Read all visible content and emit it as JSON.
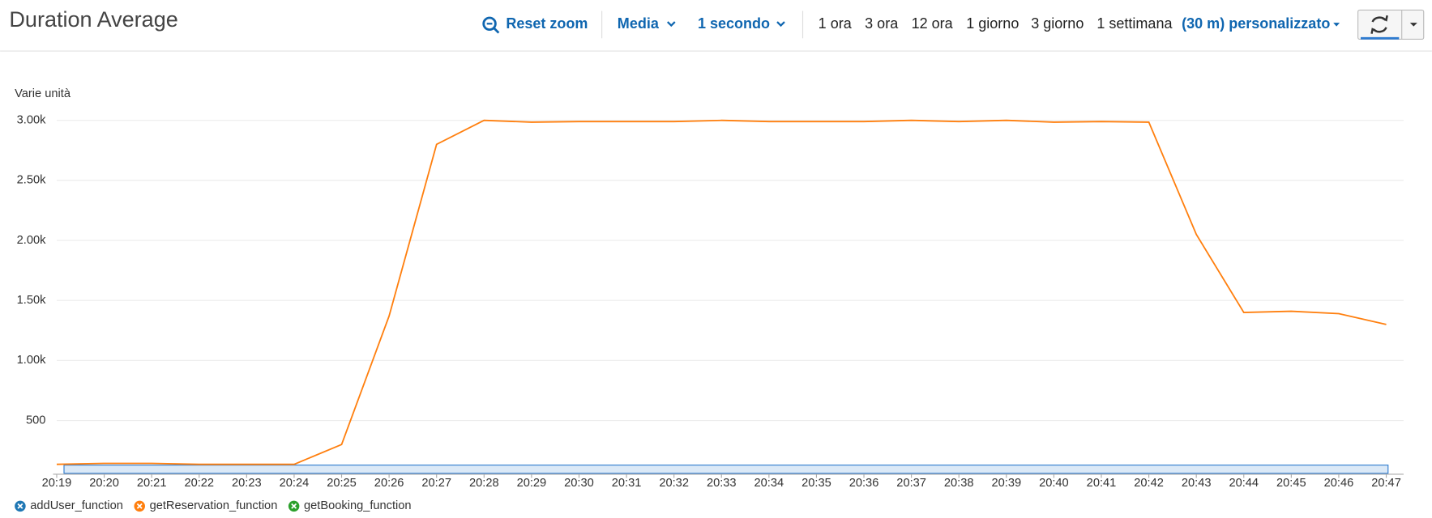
{
  "toolbar": {
    "reset_zoom": "Reset zoom",
    "statistic": "Media",
    "period": "1 secondo",
    "ranges": [
      "1 ora",
      "3 ora",
      "12 ora",
      "1 giorno",
      "3 giorno",
      "1 settimana"
    ],
    "custom_range": "(30 m) personalizzato"
  },
  "chart_data": {
    "type": "line",
    "title": "Duration Average",
    "y_label": "Varie unità",
    "categories": [
      "20:19",
      "20:20",
      "20:21",
      "20:22",
      "20:23",
      "20:24",
      "20:25",
      "20:26",
      "20:27",
      "20:28",
      "20:29",
      "20:30",
      "20:31",
      "20:32",
      "20:33",
      "20:34",
      "20:35",
      "20:36",
      "20:37",
      "20:38",
      "20:39",
      "20:40",
      "20:41",
      "20:42",
      "20:43",
      "20:44",
      "20:45",
      "20:46",
      "20:47"
    ],
    "series": [
      {
        "name": "addUser_function",
        "color": "#1f77b4",
        "values": [
          null,
          null,
          null,
          null,
          null,
          null,
          null,
          null,
          null,
          null,
          null,
          null,
          null,
          null,
          null,
          null,
          null,
          null,
          null,
          null,
          null,
          null,
          null,
          null,
          null,
          null,
          null,
          null,
          null
        ]
      },
      {
        "name": "getReservation_function",
        "color": "#ff7f0e",
        "values": [
          135,
          143,
          143,
          135,
          135,
          135,
          300,
          1370,
          2800,
          3000,
          2985,
          2990,
          2990,
          2990,
          3000,
          2990,
          2990,
          2990,
          3000,
          2990,
          3000,
          2985,
          2990,
          2985,
          2050,
          1400,
          1410,
          1390,
          1300
        ]
      },
      {
        "name": "getBooking_function",
        "color": "#2ca02c",
        "values": [
          null,
          null,
          null,
          null,
          null,
          null,
          null,
          null,
          null,
          null,
          null,
          null,
          null,
          null,
          null,
          null,
          null,
          null,
          null,
          null,
          null,
          null,
          null,
          null,
          null,
          null,
          null,
          null,
          null
        ]
      }
    ],
    "ylim": [
      60,
      3050
    ],
    "yticks": [
      500,
      {
        "value": 1000,
        "label": "1.00k"
      },
      {
        "value": 1500,
        "label": "1.50k"
      },
      {
        "value": 2000,
        "label": "2.00k"
      },
      {
        "value": 2500,
        "label": "2.50k"
      },
      {
        "value": 3000,
        "label": "3.00k"
      }
    ],
    "grid": true
  }
}
